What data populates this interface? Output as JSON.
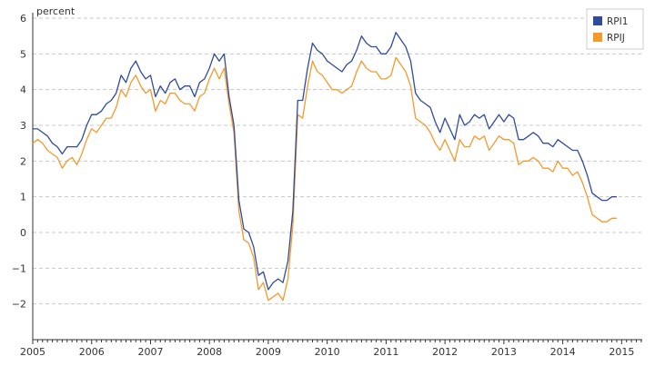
{
  "chart_data": {
    "type": "line",
    "ylabel": "percent",
    "ylim": [
      -3,
      6
    ],
    "yticks": [
      -2,
      -1,
      0,
      1,
      2,
      3,
      4,
      5,
      6
    ],
    "xlim": [
      2005.0,
      2015.35
    ],
    "xticks": [
      "2005",
      "2006",
      "2007",
      "2008",
      "2009",
      "2010",
      "2011",
      "2012",
      "2013",
      "2014",
      "2015"
    ],
    "grid": "horizontal dashed",
    "legend_position": "top-right",
    "x_start": "2005-01",
    "series": [
      {
        "name": "RPI1",
        "color": "#2f4b9c",
        "values": [
          2.9,
          2.9,
          2.8,
          2.7,
          2.5,
          2.4,
          2.2,
          2.4,
          2.4,
          2.4,
          2.6,
          3.0,
          3.3,
          3.3,
          3.4,
          3.6,
          3.7,
          3.9,
          4.4,
          4.2,
          4.6,
          4.8,
          4.5,
          4.3,
          4.4,
          3.8,
          4.1,
          3.9,
          4.2,
          4.3,
          4.0,
          4.1,
          4.1,
          3.8,
          4.2,
          4.3,
          4.6,
          5.0,
          4.8,
          5.0,
          3.8,
          3.0,
          0.9,
          0.1,
          0.0,
          -0.4,
          -1.2,
          -1.1,
          -1.6,
          -1.4,
          -1.3,
          -1.4,
          -0.8,
          0.6,
          3.7,
          3.7,
          4.6,
          5.3,
          5.1,
          5.0,
          4.8,
          4.7,
          4.6,
          4.5,
          4.7,
          4.8,
          5.1,
          5.5,
          5.3,
          5.2,
          5.2,
          5.0,
          5.0,
          5.2,
          5.6,
          5.4,
          5.2,
          4.8,
          3.9,
          3.7,
          3.6,
          3.5,
          3.1,
          2.8,
          3.2,
          2.9,
          2.6,
          3.3,
          3.0,
          3.1,
          3.3,
          3.2,
          3.3,
          2.9,
          3.1,
          3.3,
          3.1,
          3.3,
          3.2,
          2.6,
          2.6,
          2.7,
          2.8,
          2.7,
          2.5,
          2.5,
          2.4,
          2.6,
          2.5,
          2.4,
          2.3,
          2.3,
          2.0,
          1.6,
          1.1,
          1.0,
          0.9,
          0.9,
          1.0,
          1.0
        ]
      },
      {
        "name": "RPIJ",
        "color": "#f39a2b",
        "values": [
          2.5,
          2.6,
          2.5,
          2.3,
          2.2,
          2.1,
          1.8,
          2.0,
          2.1,
          1.9,
          2.2,
          2.6,
          2.9,
          2.8,
          3.0,
          3.2,
          3.2,
          3.5,
          4.0,
          3.8,
          4.2,
          4.4,
          4.1,
          3.9,
          4.0,
          3.4,
          3.7,
          3.6,
          3.9,
          3.9,
          3.7,
          3.6,
          3.6,
          3.4,
          3.8,
          3.9,
          4.3,
          4.6,
          4.3,
          4.6,
          3.6,
          2.8,
          0.6,
          -0.2,
          -0.3,
          -0.7,
          -1.6,
          -1.4,
          -1.9,
          -1.8,
          -1.7,
          -1.9,
          -1.3,
          0.2,
          3.3,
          3.2,
          4.1,
          4.8,
          4.5,
          4.4,
          4.2,
          4.0,
          4.0,
          3.9,
          4.0,
          4.1,
          4.5,
          4.8,
          4.6,
          4.5,
          4.5,
          4.3,
          4.3,
          4.4,
          4.9,
          4.7,
          4.5,
          4.1,
          3.2,
          3.1,
          3.0,
          2.8,
          2.5,
          2.3,
          2.6,
          2.3,
          2.0,
          2.6,
          2.4,
          2.4,
          2.7,
          2.6,
          2.7,
          2.3,
          2.5,
          2.7,
          2.6,
          2.6,
          2.5,
          1.9,
          2.0,
          2.0,
          2.1,
          2.0,
          1.8,
          1.8,
          1.7,
          2.0,
          1.8,
          1.8,
          1.6,
          1.7,
          1.4,
          1.0,
          0.5,
          0.4,
          0.3,
          0.3,
          0.4,
          0.4
        ]
      }
    ]
  }
}
